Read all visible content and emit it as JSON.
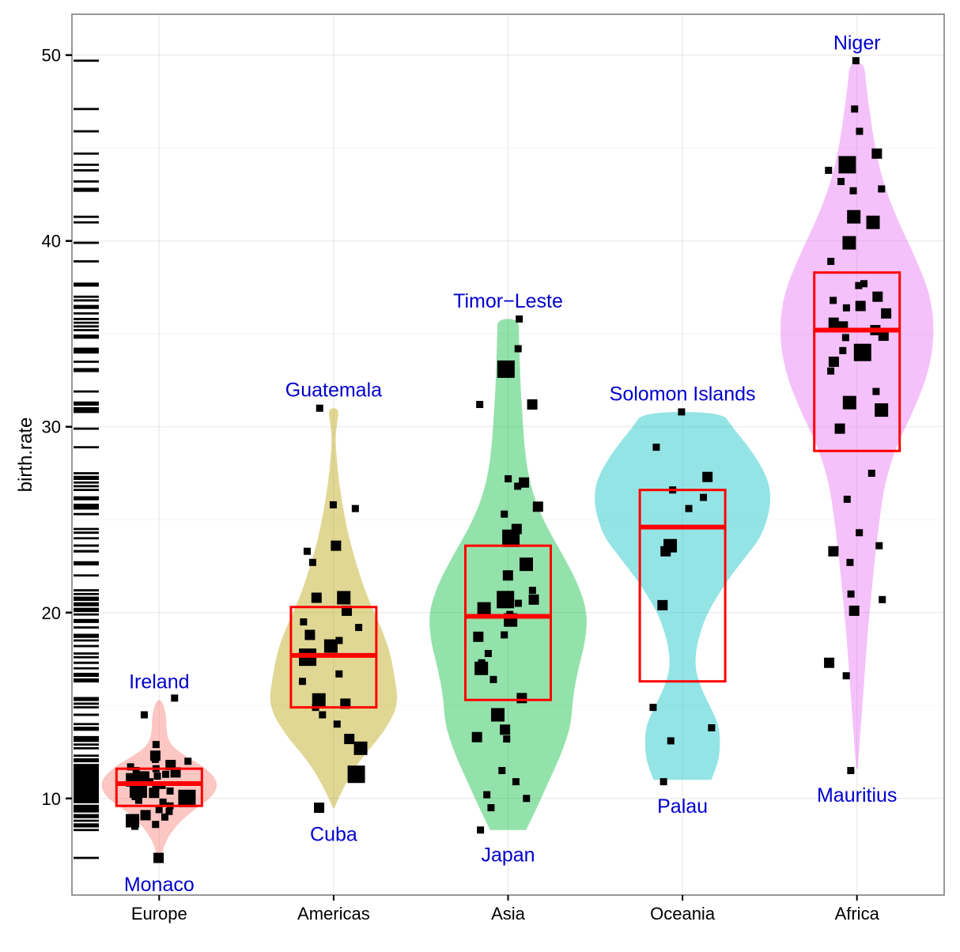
{
  "chart_data": {
    "type": "violin",
    "ylabel": "birth.rate",
    "xlabel": "",
    "ylim": [
      4.8,
      52.2
    ],
    "yticks": [
      10,
      20,
      30,
      40,
      50
    ],
    "grid": true,
    "categories": [
      "Europe",
      "Americas",
      "Asia",
      "Oceania",
      "Africa"
    ],
    "colors": {
      "Europe": "#F8766D",
      "Americas": "#B79F00",
      "Asia": "#00BA38",
      "Oceania": "#00BFC4",
      "Africa": "#E76BF3",
      "box": "#FF0000",
      "points": "#000000",
      "annotation": "#0000CC"
    },
    "annotations": [
      {
        "group": "Europe",
        "label": "Ireland",
        "y": 16.3
      },
      {
        "group": "Europe",
        "label": "Monaco",
        "y": 5.4
      },
      {
        "group": "Americas",
        "label": "Guatemala",
        "y": 32.0
      },
      {
        "group": "Americas",
        "label": "Cuba",
        "y": 8.1
      },
      {
        "group": "Asia",
        "label": "Timor−Leste",
        "y": 36.8
      },
      {
        "group": "Asia",
        "label": "Japan",
        "y": 7.0
      },
      {
        "group": "Oceania",
        "label": "Solomon Islands",
        "y": 31.8
      },
      {
        "group": "Oceania",
        "label": "Palau",
        "y": 9.6
      },
      {
        "group": "Africa",
        "label": "Niger",
        "y": 50.7
      },
      {
        "group": "Africa",
        "label": "Mauritius",
        "y": 10.2
      }
    ],
    "boxes": [
      {
        "group": "Europe",
        "q1": 9.6,
        "median": 10.8,
        "q3": 11.6
      },
      {
        "group": "Americas",
        "q1": 14.9,
        "median": 17.7,
        "q3": 20.3
      },
      {
        "group": "Asia",
        "q1": 15.3,
        "median": 19.8,
        "q3": 23.6
      },
      {
        "group": "Oceania",
        "q1": 16.3,
        "median": 24.6,
        "q3": 26.6
      },
      {
        "group": "Africa",
        "q1": 28.7,
        "median": 35.2,
        "q3": 38.3
      }
    ],
    "violins": [
      {
        "group": "Europe",
        "profile": [
          [
            6.7,
            0.02
          ],
          [
            7.6,
            0.06
          ],
          [
            8.5,
            0.18
          ],
          [
            9.3,
            0.36
          ],
          [
            10.1,
            0.6
          ],
          [
            10.9,
            0.66
          ],
          [
            11.7,
            0.5
          ],
          [
            12.3,
            0.28
          ],
          [
            12.9,
            0.12
          ],
          [
            13.6,
            0.08
          ],
          [
            14.5,
            0.08
          ],
          [
            15.3,
            0.03
          ]
        ]
      },
      {
        "group": "Americas",
        "profile": [
          [
            9.5,
            0.01
          ],
          [
            10.5,
            0.1
          ],
          [
            12.0,
            0.28
          ],
          [
            13.5,
            0.55
          ],
          [
            15.0,
            0.72
          ],
          [
            16.5,
            0.68
          ],
          [
            18.0,
            0.62
          ],
          [
            19.5,
            0.5
          ],
          [
            21.0,
            0.36
          ],
          [
            22.5,
            0.26
          ],
          [
            24.0,
            0.17
          ],
          [
            25.5,
            0.11
          ],
          [
            27.0,
            0.06
          ],
          [
            28.5,
            0.03
          ],
          [
            29.5,
            0.02
          ],
          [
            30.2,
            0.04
          ],
          [
            31.0,
            0.06
          ]
        ]
      },
      {
        "group": "Asia",
        "profile": [
          [
            8.3,
            0.2
          ],
          [
            9.5,
            0.32
          ],
          [
            11.0,
            0.46
          ],
          [
            12.5,
            0.6
          ],
          [
            14.0,
            0.7
          ],
          [
            15.5,
            0.72
          ],
          [
            17.0,
            0.78
          ],
          [
            18.5,
            0.86
          ],
          [
            20.0,
            0.88
          ],
          [
            21.5,
            0.78
          ],
          [
            23.0,
            0.62
          ],
          [
            24.5,
            0.44
          ],
          [
            26.0,
            0.3
          ],
          [
            27.5,
            0.22
          ],
          [
            29.0,
            0.18
          ],
          [
            30.5,
            0.16
          ],
          [
            32.0,
            0.14
          ],
          [
            33.5,
            0.13
          ],
          [
            35.0,
            0.12
          ],
          [
            35.8,
            0.12
          ]
        ]
      },
      {
        "group": "Oceania",
        "profile": [
          [
            11.0,
            0.32
          ],
          [
            12.0,
            0.4
          ],
          [
            13.0,
            0.42
          ],
          [
            14.0,
            0.4
          ],
          [
            15.0,
            0.3
          ],
          [
            16.0,
            0.2
          ],
          [
            17.0,
            0.14
          ],
          [
            18.0,
            0.15
          ],
          [
            19.0,
            0.2
          ],
          [
            20.0,
            0.28
          ],
          [
            21.0,
            0.4
          ],
          [
            22.0,
            0.54
          ],
          [
            23.0,
            0.7
          ],
          [
            24.0,
            0.86
          ],
          [
            25.0,
            0.94
          ],
          [
            26.0,
            0.98
          ],
          [
            27.0,
            0.96
          ],
          [
            28.0,
            0.86
          ],
          [
            29.0,
            0.72
          ],
          [
            30.0,
            0.55
          ],
          [
            30.8,
            0.44
          ]
        ]
      },
      {
        "group": "Africa",
        "profile": [
          [
            11.6,
            0.01
          ],
          [
            13.0,
            0.03
          ],
          [
            15.0,
            0.06
          ],
          [
            17.0,
            0.09
          ],
          [
            19.0,
            0.12
          ],
          [
            21.0,
            0.16
          ],
          [
            23.0,
            0.2
          ],
          [
            25.0,
            0.25
          ],
          [
            27.0,
            0.31
          ],
          [
            29.0,
            0.44
          ],
          [
            31.0,
            0.64
          ],
          [
            33.0,
            0.8
          ],
          [
            35.0,
            0.86
          ],
          [
            37.0,
            0.82
          ],
          [
            39.0,
            0.66
          ],
          [
            41.0,
            0.46
          ],
          [
            43.0,
            0.3
          ],
          [
            45.0,
            0.2
          ],
          [
            47.0,
            0.14
          ],
          [
            48.5,
            0.1
          ],
          [
            49.6,
            0.08
          ]
        ]
      }
    ],
    "points": [
      {
        "group": "Europe",
        "values": [
          6.8,
          8.5,
          8.6,
          8.8,
          9.0,
          9.1,
          9.3,
          9.4,
          9.6,
          9.8,
          9.9,
          10.0,
          10.1,
          10.2,
          10.3,
          10.4,
          10.5,
          10.6,
          10.7,
          10.8,
          10.9,
          11.0,
          11.1,
          11.2,
          11.3,
          11.4,
          11.5,
          11.6,
          11.7,
          11.8,
          12.0,
          12.1,
          12.3,
          12.9,
          14.5,
          15.4
        ]
      },
      {
        "group": "Americas",
        "values": [
          9.5,
          11.3,
          12.7,
          13.2,
          14.0,
          14.5,
          14.9,
          15.1,
          15.3,
          16.3,
          16.7,
          17.6,
          18.2,
          18.5,
          18.8,
          19.2,
          19.5,
          20.1,
          20.8,
          20.8,
          22.7,
          23.3,
          23.6,
          25.6,
          25.8,
          31.0
        ]
      },
      {
        "group": "Asia",
        "values": [
          8.3,
          9.5,
          10.0,
          10.2,
          10.9,
          11.5,
          13.2,
          13.3,
          13.7,
          14.5,
          15.4,
          16.4,
          17.0,
          17.3,
          17.8,
          18.7,
          18.8,
          19.6,
          19.9,
          20.2,
          20.5,
          20.7,
          20.7,
          21.2,
          22.0,
          22.6,
          24.0,
          24.5,
          25.3,
          25.7,
          26.8,
          27.0,
          27.2,
          31.2,
          31.2,
          33.1,
          34.2,
          35.8
        ]
      },
      {
        "group": "Oceania",
        "values": [
          10.9,
          13.1,
          13.8,
          14.9,
          20.4,
          23.3,
          23.6,
          25.6,
          26.2,
          26.6,
          27.3,
          28.9,
          30.8
        ]
      },
      {
        "group": "Africa",
        "values": [
          11.5,
          16.6,
          17.3,
          20.1,
          20.7,
          21.0,
          22.7,
          23.3,
          23.6,
          24.3,
          26.1,
          27.5,
          29.9,
          30.9,
          31.3,
          31.9,
          33.0,
          33.5,
          34.0,
          34.1,
          34.8,
          34.9,
          35.2,
          35.4,
          35.6,
          36.1,
          36.4,
          36.5,
          36.8,
          37.0,
          37.6,
          37.7,
          38.9,
          39.9,
          41.0,
          41.3,
          42.7,
          42.8,
          43.2,
          43.8,
          44.1,
          44.7,
          45.9,
          47.1,
          49.7
        ]
      }
    ]
  }
}
